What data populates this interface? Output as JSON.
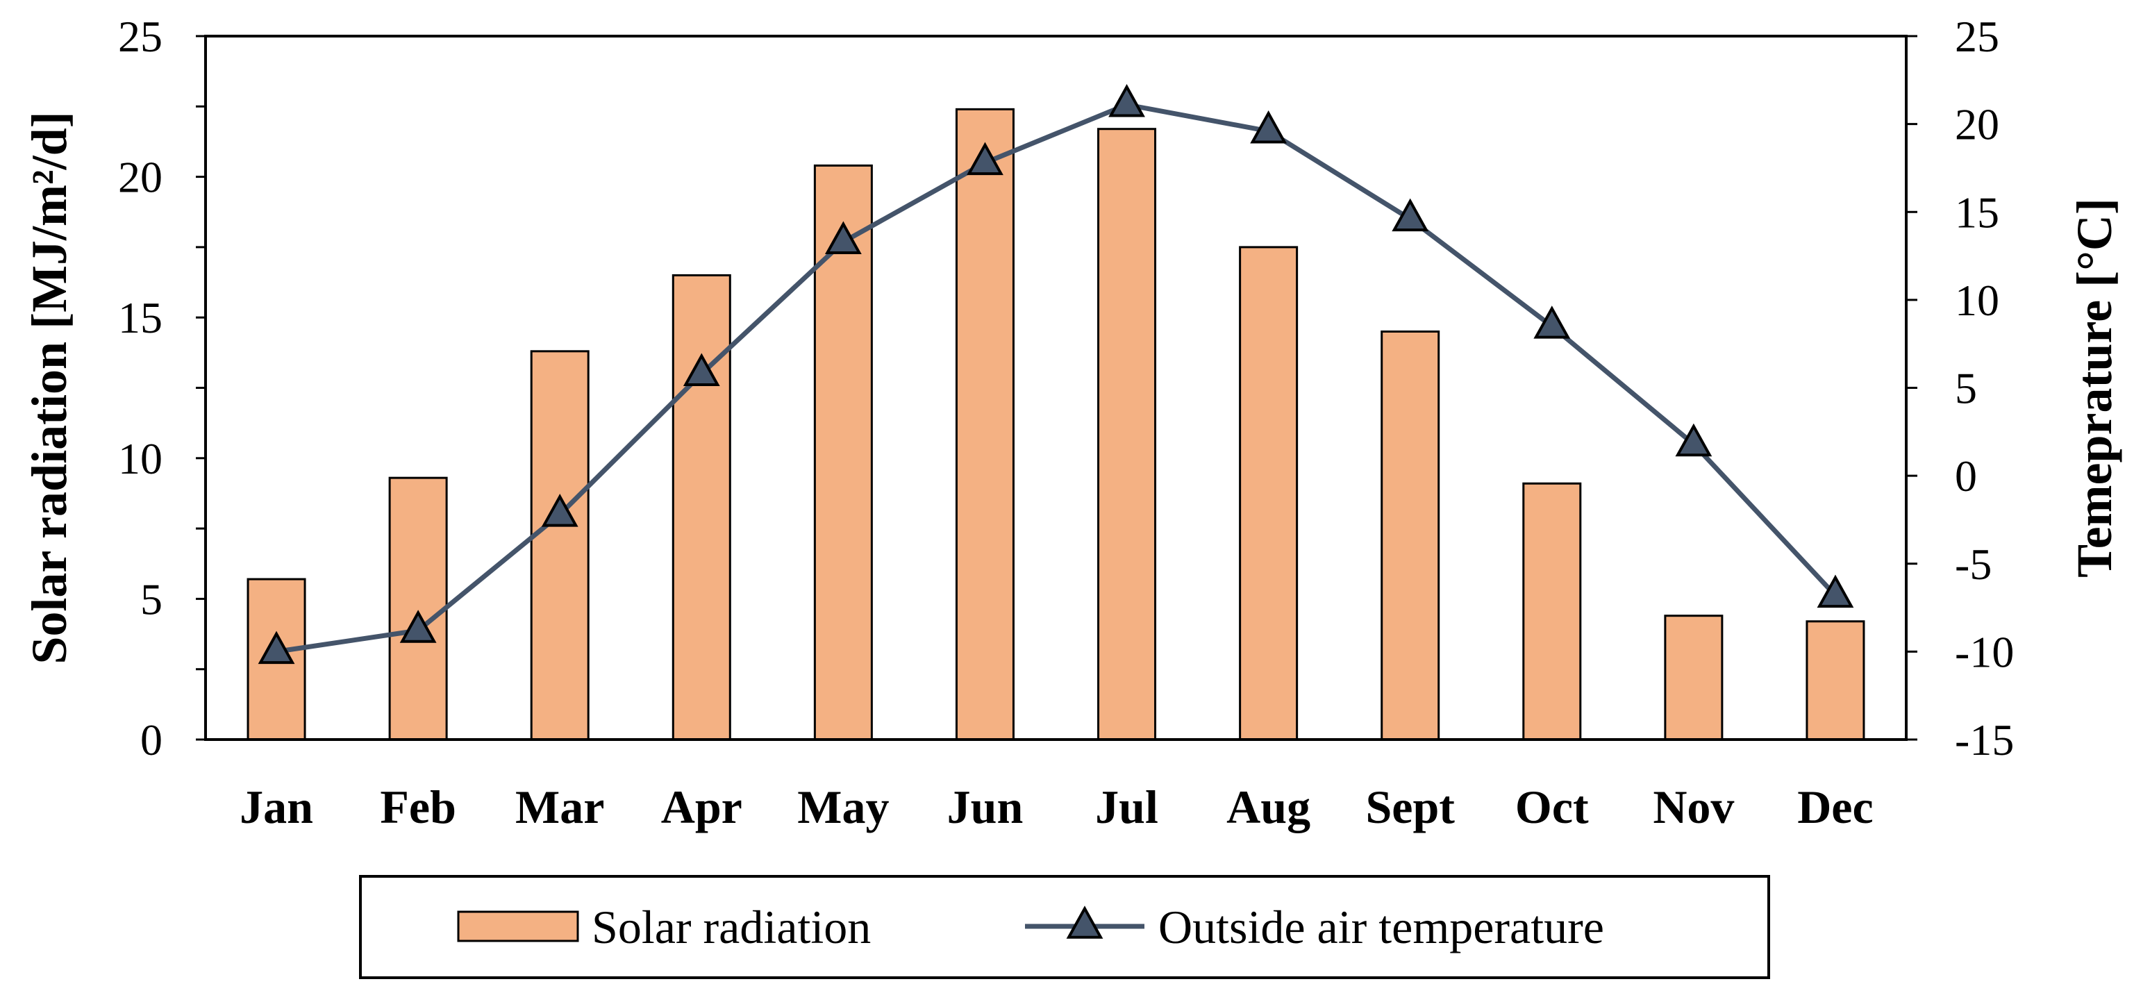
{
  "chart_data": {
    "type": "bar+line",
    "categories": [
      "Jan",
      "Feb",
      "Mar",
      "Apr",
      "May",
      "Jun",
      "Jul",
      "Aug",
      "Sept",
      "Oct",
      "Nov",
      "Dec"
    ],
    "series": [
      {
        "name": "Solar radiation",
        "type": "bar",
        "axis": "left",
        "values": [
          5.7,
          9.3,
          13.8,
          16.5,
          20.4,
          22.4,
          21.7,
          17.5,
          14.5,
          9.1,
          4.4,
          4.2
        ],
        "color": "#F4B183"
      },
      {
        "name": "Outside air temperature",
        "type": "line",
        "axis": "right",
        "marker": "triangle",
        "values": [
          -10.0,
          -8.8,
          -2.2,
          5.8,
          13.3,
          17.8,
          21.1,
          19.6,
          14.6,
          8.5,
          1.8,
          -6.8
        ],
        "color": "#44546A"
      }
    ],
    "left_axis": {
      "label": "Solar radiation [MJ/m²/d]",
      "ylim": [
        0,
        25
      ],
      "ticks": [
        "0",
        "5",
        "10",
        "15",
        "20",
        "25"
      ]
    },
    "right_axis": {
      "label": "Temeprature [°C]",
      "ylim": [
        -15,
        25
      ],
      "ticks": [
        "-15",
        "-10",
        "-5",
        "0",
        "5",
        "10",
        "15",
        "20",
        "25"
      ]
    },
    "legend": {
      "placement": "bottom",
      "items": [
        "Solar radiation",
        "Outside air temperature"
      ]
    },
    "grid": false
  }
}
